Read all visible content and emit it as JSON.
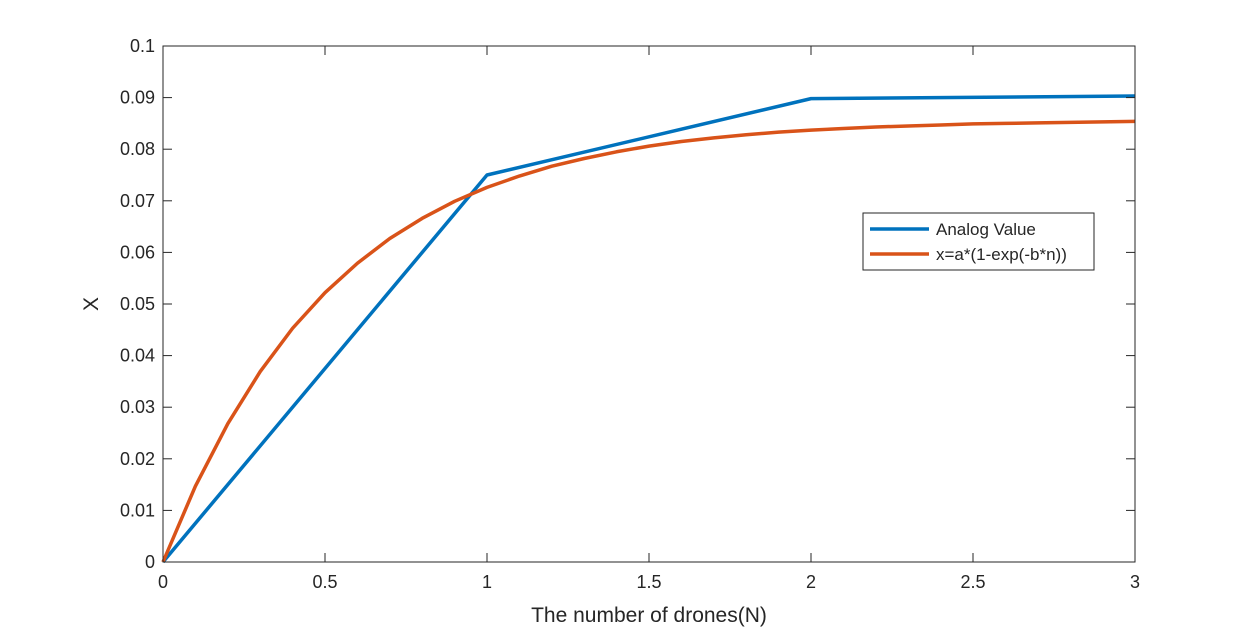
{
  "chart_data": {
    "type": "line",
    "title": "",
    "xlabel": "The number of drones(N)",
    "ylabel": "X",
    "xlim": [
      0,
      3
    ],
    "ylim": [
      0,
      0.1
    ],
    "xticks": [
      0,
      0.5,
      1,
      1.5,
      2,
      2.5,
      3
    ],
    "xtick_labels": [
      "0",
      "0.5",
      "1",
      "1.5",
      "2",
      "2.5",
      "3"
    ],
    "yticks": [
      0,
      0.01,
      0.02,
      0.03,
      0.04,
      0.05,
      0.06,
      0.07,
      0.08,
      0.09,
      0.1
    ],
    "ytick_labels": [
      "0",
      "0.01",
      "0.02",
      "0.03",
      "0.04",
      "0.05",
      "0.06",
      "0.07",
      "0.08",
      "0.09",
      "0.1"
    ],
    "grid": false,
    "box": true,
    "legend_position": "right, slightly above center",
    "series": [
      {
        "name": "Analog Value",
        "color": "#0072BD",
        "x": [
          0,
          1,
          2,
          3
        ],
        "y": [
          0,
          0.075,
          0.0898,
          0.0903
        ]
      },
      {
        "name": "x=a*(1-exp(-b*n))",
        "color": "#D95319",
        "x": [
          0,
          0.1,
          0.2,
          0.3,
          0.4,
          0.5,
          0.6,
          0.7,
          0.8,
          0.9,
          1.0,
          1.1,
          1.2,
          1.3,
          1.4,
          1.5,
          1.6,
          1.7,
          1.8,
          1.9,
          2.0,
          2.1,
          2.2,
          2.3,
          2.4,
          2.5,
          2.6,
          2.7,
          2.8,
          2.9,
          3.0
        ],
        "y": [
          0,
          0.0147,
          0.0268,
          0.0369,
          0.0453,
          0.0522,
          0.0579,
          0.0627,
          0.0666,
          0.0699,
          0.0726,
          0.0748,
          0.0767,
          0.0782,
          0.0795,
          0.0806,
          0.0815,
          0.0822,
          0.0828,
          0.0833,
          0.0837,
          0.084,
          0.0843,
          0.0845,
          0.0847,
          0.0849,
          0.085,
          0.0851,
          0.0852,
          0.0853,
          0.0854
        ]
      }
    ]
  }
}
